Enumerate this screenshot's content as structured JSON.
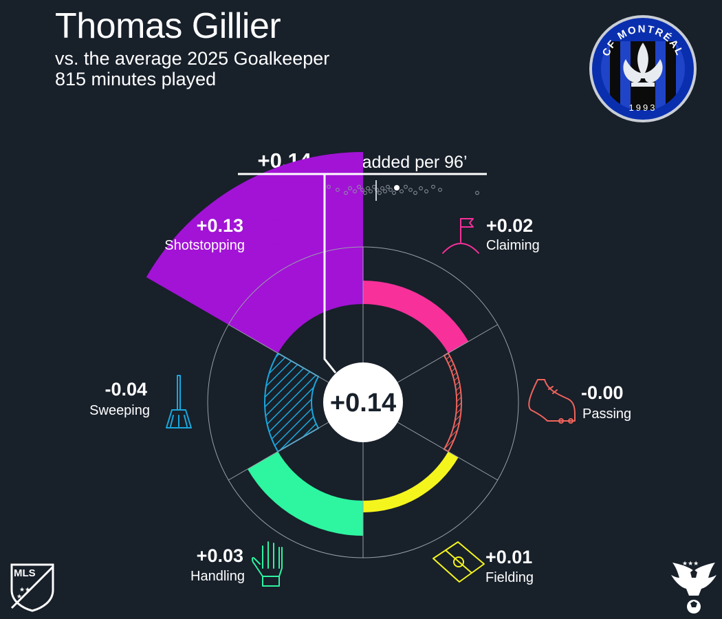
{
  "header": {
    "player_name": "Thomas Gillier",
    "comparison": "vs. the average 2025 Goalkeeper",
    "minutes": "815 minutes played"
  },
  "summary": {
    "total_value": "+0.14",
    "total_suffix": "goals added per 96’",
    "center_value": "+0.14"
  },
  "logos": {
    "club_text": "CF MONTRÉAL",
    "club_year": "1993",
    "league_text": "MLS"
  },
  "colors": {
    "background": "#18202a",
    "shotstopping": "#a213d6",
    "claiming": "#f7309a",
    "passing": "#f0645c",
    "fielding": "#f5f51e",
    "handling": "#2ef5a0",
    "sweeping": "#1aa8de"
  },
  "chart_data": {
    "type": "radial-bar",
    "unit": "goals added per 96’",
    "rlim": [
      -0.04,
      0.14
    ],
    "categories": [
      "Claiming",
      "Passing",
      "Fielding",
      "Handling",
      "Sweeping",
      "Shotstopping"
    ],
    "values": [
      0.02,
      -0.004,
      0.01,
      0.03,
      -0.04,
      0.13
    ],
    "labels": [
      "+0.02",
      "-0.00",
      "+0.01",
      "+0.03",
      "-0.04",
      "+0.13"
    ],
    "icons": [
      "corner-flag-icon",
      "boot-icon",
      "pitch-icon",
      "glove-icon",
      "broom-icon",
      "brick-wall-icon"
    ],
    "total": 0.14,
    "distribution_highlight": 0.14
  }
}
